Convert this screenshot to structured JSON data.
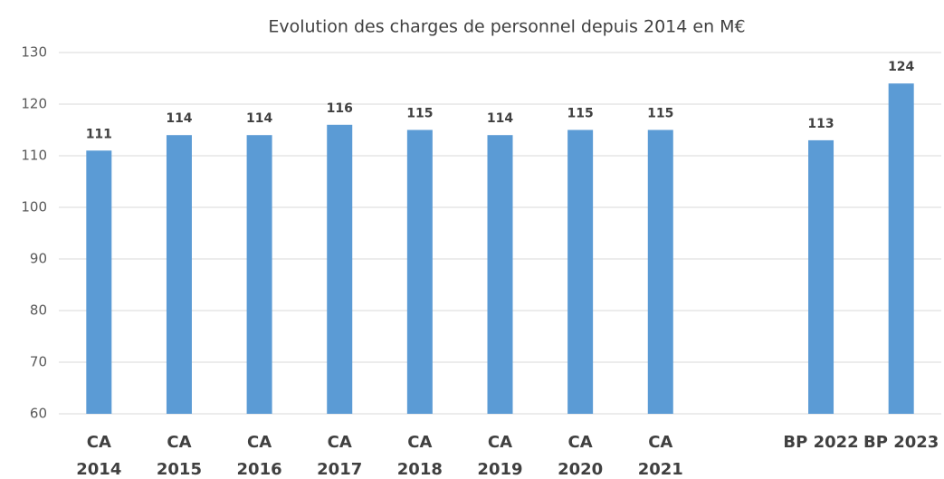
{
  "chart_data": {
    "type": "bar",
    "title": "Evolution des charges de personnel depuis 2014 en M€",
    "categories": [
      "CA\n2014",
      "CA\n2015",
      "CA\n2016",
      "CA\n2017",
      "CA\n2018",
      "CA\n2019",
      "CA\n2020",
      "CA\n2021",
      null,
      "BP 2022",
      "BP 2023"
    ],
    "values": [
      111,
      114,
      114,
      116,
      115,
      114,
      115,
      115,
      null,
      113,
      124
    ],
    "color": "#5b9bd5",
    "ylim": [
      60,
      130
    ],
    "yticks": [
      60,
      70,
      80,
      90,
      100,
      110,
      120,
      130
    ],
    "grid": true
  }
}
